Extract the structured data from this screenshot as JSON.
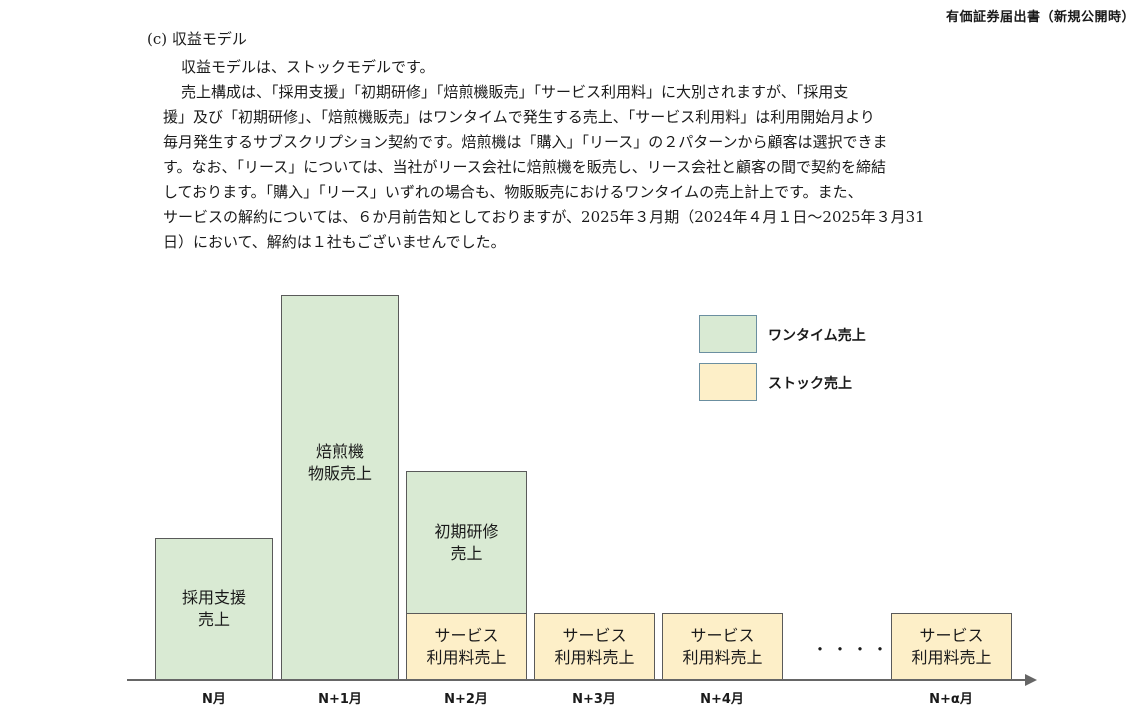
{
  "header": {
    "doc_type": "有価証券届出書（新規公開時）"
  },
  "section": {
    "title": "(c)  収益モデル",
    "paragraphs": [
      "収益モデルは、ストックモデルです。",
      "売上構成は、「採用支援」「初期研修」「焙煎機販売」「サービス利用料」に大別されますが、「採用支",
      "援」及び「初期研修」、「焙煎機販売」はワンタイムで発生する売上、「サービス利用料」は利用開始月より",
      "毎月発生するサブスクリプション契約です。焙煎機は「購入」「リース」の２パターンから顧客は選択できま",
      "す。なお、「リース」については、当社がリース会社に焙煎機を販売し、リース会社と顧客の間で契約を締結",
      "しております。「購入」「リース」いずれの場合も、物販販売におけるワンタイムの売上計上です。また、",
      "サービスの解約については、６か月前告知としておりますが、2025年３月期（2024年４月１日～2025年３月31",
      "日）において、解約は１社もございませんでした。"
    ]
  },
  "chart_data": {
    "type": "bar",
    "stacked": true,
    "categories": [
      "N月",
      "N+1月",
      "N+2月",
      "N+3月",
      "N+4月",
      "N+α月"
    ],
    "series": [
      {
        "name": "ワンタイム売上",
        "color": "#d9ead3",
        "labels": [
          "採用支援\n売上",
          "焙煎機\n物販売上",
          "初期研修\n売上",
          "",
          "",
          ""
        ]
      },
      {
        "name": "ストック売上",
        "color": "#fdefc8",
        "labels": [
          "",
          "",
          "サービス\n利用料売上",
          "サービス\n利用料売上",
          "サービス\n利用料売上",
          "サービス\n利用料売上"
        ]
      }
    ],
    "ellipsis": "・・・・",
    "legend_position": "top-right",
    "axis_arrow": true
  }
}
